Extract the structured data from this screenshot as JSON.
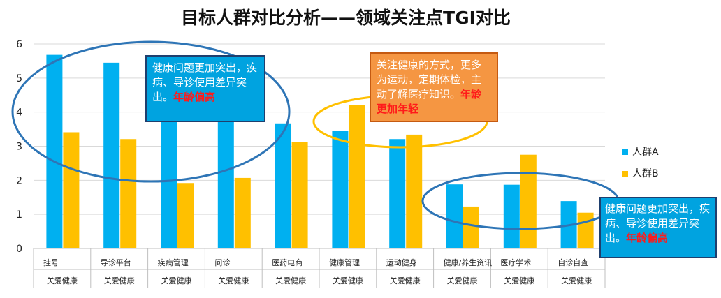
{
  "title": "目标人群对比分析——领域关注点TGI对比",
  "colors": {
    "series_a": "#00b0f0",
    "series_b": "#ffc000",
    "grid": "#d9d9d9",
    "ellipse_blue": "#2e75b6",
    "ellipse_yellow": "#ffc000"
  },
  "chart_data": {
    "type": "bar",
    "categories": [
      "挂号",
      "导诊平台",
      "疾病管理",
      "问诊",
      "医药电商",
      "健康管理",
      "运动健身",
      "健康/养生资讯",
      "医疗学术",
      "自诊自查"
    ],
    "group_label": "关爱健康",
    "series": [
      {
        "name": "人群A",
        "values": [
          5.68,
          5.45,
          4.15,
          4.15,
          3.67,
          3.45,
          3.21,
          1.88,
          1.87,
          1.39
        ]
      },
      {
        "name": "人群B",
        "values": [
          3.41,
          3.21,
          1.92,
          2.07,
          3.13,
          4.2,
          3.34,
          1.23,
          2.75,
          1.05
        ]
      }
    ],
    "yticks": [
      0,
      1,
      2,
      3,
      4,
      5,
      6
    ],
    "ylim": [
      0,
      6
    ],
    "grid": true,
    "legend": "right"
  },
  "annotations": [
    {
      "text": "健康问题更加突出，疾病、导诊使用差异突出。",
      "highlight": "年龄偏高"
    },
    {
      "text": "关注健康的方式，更多为运动，定期体检，主动了解医疗知识。",
      "highlight": "年龄更加年轻"
    },
    {
      "text": "健康问题更加突出，疾病、导诊使用差异突出。",
      "highlight": "年龄偏高"
    }
  ]
}
